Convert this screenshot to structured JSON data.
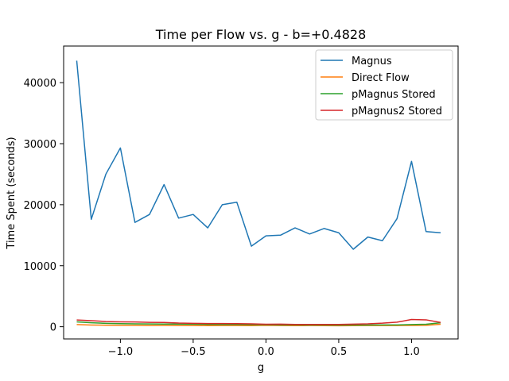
{
  "chart_data": {
    "type": "line",
    "title": "Time per Flow vs. g - b=+0.4828",
    "xlabel": "g",
    "ylabel": "Time Spent (seconds)",
    "xlim": [
      -1.39,
      1.32
    ],
    "ylim": [
      -2000,
      46000
    ],
    "xticks": [
      -1.0,
      -0.5,
      0.0,
      0.5,
      1.0
    ],
    "xtick_labels": [
      "−1.0",
      "−0.5",
      "0.0",
      "0.5",
      "1.0"
    ],
    "yticks": [
      0,
      10000,
      20000,
      30000,
      40000
    ],
    "ytick_labels": [
      "0",
      "10000",
      "20000",
      "30000",
      "40000"
    ],
    "grid": false,
    "legend_position": "top-right",
    "x": [
      -1.3,
      -1.2,
      -1.1,
      -1.0,
      -0.9,
      -0.8,
      -0.7,
      -0.6,
      -0.5,
      -0.4,
      -0.3,
      -0.2,
      -0.1,
      0.0,
      0.1,
      0.2,
      0.3,
      0.4,
      0.5,
      0.6,
      0.7,
      0.8,
      0.9,
      1.0,
      1.1,
      1.2
    ],
    "series": [
      {
        "name": "Magnus",
        "color": "#1f77b4",
        "values": [
          43600,
          17600,
          25000,
          29300,
          17100,
          18400,
          23300,
          17800,
          18400,
          16200,
          20000,
          20400,
          13200,
          14900,
          15000,
          16200,
          15200,
          16100,
          15400,
          12700,
          14700,
          14100,
          17700,
          27100,
          15600,
          15400
        ]
      },
      {
        "name": "Direct Flow",
        "color": "#ff7f0e",
        "values": [
          350,
          280,
          250,
          220,
          230,
          200,
          210,
          190,
          200,
          180,
          200,
          190,
          180,
          230,
          200,
          180,
          190,
          180,
          170,
          180,
          200,
          200,
          200,
          210,
          230,
          400
        ]
      },
      {
        "name": "pMagnus Stored",
        "color": "#2ca02c",
        "values": [
          800,
          650,
          550,
          500,
          480,
          450,
          440,
          420,
          400,
          380,
          360,
          350,
          340,
          320,
          300,
          290,
          280,
          270,
          260,
          270,
          280,
          290,
          300,
          350,
          400,
          650
        ]
      },
      {
        "name": "pMagnus2 Stored",
        "color": "#d62728",
        "values": [
          1100,
          1000,
          850,
          800,
          780,
          720,
          700,
          600,
          560,
          520,
          520,
          500,
          480,
          400,
          420,
          380,
          380,
          380,
          370,
          420,
          470,
          580,
          750,
          1180,
          1130,
          700
        ]
      }
    ]
  }
}
